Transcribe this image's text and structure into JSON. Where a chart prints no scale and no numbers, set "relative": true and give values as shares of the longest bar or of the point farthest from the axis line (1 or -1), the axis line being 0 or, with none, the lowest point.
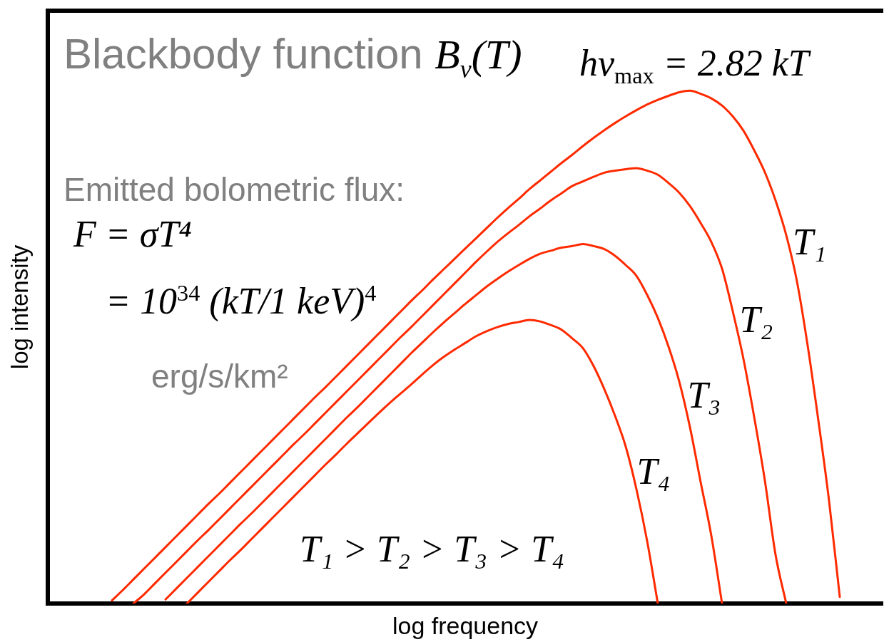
{
  "chart_data": {
    "type": "line",
    "title": "Blackbody function B$_{ν}$(T)",
    "xlabel": "log frequency",
    "ylabel": "log intensity",
    "annotations": [
      "hν$_{max}$ = 2.82 kT",
      "Emitted bolometric flux:",
      "F = σT⁴",
      "= 10$^{34}$ (kT/1 keV)$^{4}$",
      "erg/s/km²",
      "T₁ > T₂ > T₃ > T₄"
    ],
    "relative": true,
    "categories": [
      null,
      null,
      null,
      null,
      null,
      null,
      null,
      null,
      null,
      null,
      null,
      null,
      null,
      null,
      null,
      null,
      null,
      null,
      null,
      null,
      null,
      null,
      null,
      null,
      null,
      null,
      null,
      null,
      null,
      null,
      null,
      null,
      null,
      null,
      null,
      null,
      null,
      null,
      null,
      null,
      null,
      null,
      null,
      null,
      null,
      null,
      null,
      null,
      null,
      null,
      null,
      null,
      null,
      null,
      null,
      null,
      null,
      null,
      null,
      null,
      null,
      null,
      null,
      null,
      null,
      null,
      null,
      null,
      null,
      null,
      null,
      null,
      null,
      null,
      null,
      null,
      null,
      null,
      null
    ],
    "series": [
      {
        "name": "T₁",
        "color": "#ff2a00",
        "values": [
          null,
          null,
          null,
          null,
          null,
          null,
          0.006,
          0.026,
          0.047,
          0.068,
          0.089,
          0.11,
          0.131,
          0.152,
          0.173,
          0.194,
          0.214,
          0.235,
          0.256,
          0.277,
          0.298,
          0.319,
          0.34,
          0.361,
          0.382,
          0.403,
          0.423,
          0.444,
          0.465,
          0.486,
          0.507,
          0.528,
          0.549,
          0.57,
          0.591,
          0.611,
          0.632,
          0.652,
          0.672,
          0.692,
          0.712,
          0.732,
          0.752,
          0.771,
          0.789,
          0.808,
          0.825,
          0.842,
          0.859,
          0.875,
          0.892,
          0.908,
          0.923,
          0.937,
          0.95,
          0.962,
          0.973,
          0.982,
          0.99,
          0.997,
          1,
          0.994,
          0.985,
          0.971,
          0.95,
          0.922,
          0.884,
          0.841,
          0.786,
          0.718,
          0.628,
          0.503,
          0.357,
          0.2,
          0.013,
          null,
          null,
          null,
          null
        ]
      },
      {
        "name": "T₂",
        "color": "#ff2a00",
        "values": [
          null,
          null,
          null,
          null,
          null,
          null,
          null,
          null,
          0,
          0.018,
          0.039,
          0.06,
          0.081,
          0.102,
          0.123,
          0.143,
          0.164,
          0.185,
          0.206,
          0.227,
          0.248,
          0.269,
          0.29,
          0.311,
          0.331,
          0.352,
          0.373,
          0.394,
          0.415,
          0.436,
          0.457,
          0.478,
          0.499,
          0.52,
          0.54,
          0.561,
          0.582,
          0.603,
          0.624,
          0.645,
          0.666,
          0.686,
          0.705,
          0.722,
          0.738,
          0.755,
          0.77,
          0.786,
          0.8,
          0.814,
          0.823,
          0.832,
          0.84,
          0.844,
          0.847,
          0.849,
          0.844,
          0.836,
          0.82,
          0.801,
          0.775,
          0.742,
          0.705,
          0.653,
          0.57,
          0.477,
          0.364,
          0.24,
          0.095,
          0,
          null,
          null,
          null,
          null,
          null,
          null,
          null,
          null,
          null
        ]
      },
      {
        "name": "T₃",
        "color": "#ff2a00",
        "values": [
          null,
          null,
          null,
          null,
          null,
          null,
          null,
          null,
          null,
          null,
          null,
          0.008,
          0.029,
          0.05,
          0.071,
          0.092,
          0.113,
          0.134,
          0.155,
          0.175,
          0.196,
          0.217,
          0.238,
          0.259,
          0.28,
          0.301,
          0.322,
          0.343,
          0.364,
          0.384,
          0.405,
          0.426,
          0.447,
          0.468,
          0.489,
          0.509,
          0.529,
          0.548,
          0.566,
          0.584,
          0.601,
          0.618,
          0.633,
          0.647,
          0.66,
          0.672,
          0.682,
          0.688,
          0.694,
          0.697,
          0.701,
          0.697,
          0.691,
          0.678,
          0.66,
          0.639,
          0.602,
          0.557,
          0.501,
          0.433,
          0.344,
          0.237,
          0.132,
          0,
          null,
          null,
          null,
          null,
          null,
          null,
          null,
          null,
          null,
          null,
          null,
          null,
          null,
          null,
          null
        ]
      },
      {
        "name": "T₄",
        "color": "#ff2a00",
        "values": [
          null,
          null,
          null,
          null,
          null,
          null,
          null,
          null,
          null,
          null,
          null,
          null,
          null,
          0,
          0.021,
          0.042,
          0.063,
          0.084,
          0.104,
          0.125,
          0.146,
          0.167,
          0.188,
          0.209,
          0.23,
          0.251,
          0.272,
          0.292,
          0.313,
          0.333,
          0.353,
          0.373,
          0.392,
          0.41,
          0.428,
          0.447,
          0.465,
          0.481,
          0.495,
          0.508,
          0.521,
          0.531,
          0.539,
          0.545,
          0.549,
          0.553,
          0.55,
          0.543,
          0.534,
          0.517,
          0.498,
          0.463,
          0.418,
          0.366,
          0.306,
          0.223,
          0.122,
          0,
          null,
          null,
          null,
          null,
          null,
          null,
          null,
          null,
          null,
          null,
          null,
          null,
          null,
          null,
          null,
          null,
          null,
          null,
          null,
          null,
          null
        ]
      }
    ]
  }
}
